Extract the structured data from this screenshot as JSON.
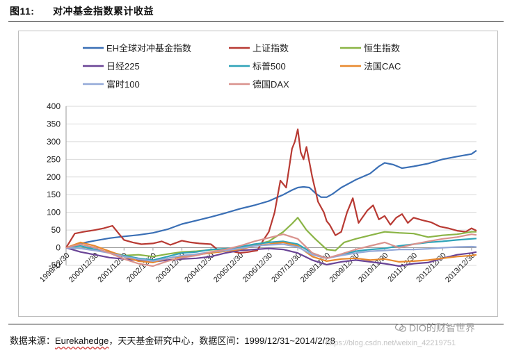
{
  "figure": {
    "number": "图11:",
    "title": "对冲基金指数累计收益"
  },
  "source_line": {
    "label": "数据来源：",
    "name": "Eurekahedge",
    "rest": "，天天基金研究中心，数据区间：1999/12/31~2014/2/28"
  },
  "watermark": {
    "brand": "DIO的财智世界",
    "url": "https://blog.csdn.net/weixin_42219751"
  },
  "colors": {
    "EH全球对冲基金指数": "#3a6fb5",
    "上证指数": "#b83a33",
    "恒生指数": "#8ab445",
    "日经225": "#6a4496",
    "标普500": "#2fa3b8",
    "法国CAC": "#e8892e",
    "富时100": "#94a9d8",
    "德国DAX": "#d9928d"
  },
  "chart_data": {
    "type": "line",
    "title": "",
    "xlabel": "",
    "ylabel": "",
    "ylim": [
      -50,
      400
    ],
    "yticks": [
      -50,
      0,
      50,
      100,
      150,
      200,
      250,
      300,
      350,
      400
    ],
    "ytick_labels": [
      "-50",
      "0",
      "50",
      "100",
      "150",
      "200",
      "250",
      "300",
      "350",
      "400"
    ],
    "grid": true,
    "legend": "top",
    "xlim": [
      0,
      14.17
    ],
    "x_categories": [
      "1999/12/30",
      "2000/12/30",
      "2001/12/30",
      "2002/12/30",
      "2003/12/30",
      "2004/12/30",
      "2005/12/30",
      "2006/12/30",
      "2007/12/30",
      "2008/12/30",
      "2009/12/30",
      "2010/12/30",
      "2011/12/30",
      "2012/12/30",
      "2013/12/30"
    ],
    "series": [
      {
        "name": "EH全球对冲基金指数",
        "x": [
          0,
          0.5,
          1,
          1.5,
          2,
          2.5,
          3,
          3.5,
          4,
          4.5,
          5,
          5.5,
          6,
          6.5,
          7,
          7.5,
          7.8,
          8,
          8.2,
          8.4,
          8.6,
          8.8,
          9,
          9.2,
          9.5,
          10,
          10.5,
          10.8,
          11,
          11.3,
          11.6,
          12,
          12.5,
          13,
          13.5,
          14,
          14.17
        ],
        "values": [
          0,
          12,
          20,
          27,
          32,
          36,
          42,
          52,
          67,
          77,
          87,
          98,
          110,
          120,
          132,
          150,
          163,
          170,
          172,
          170,
          155,
          143,
          143,
          152,
          170,
          192,
          210,
          230,
          240,
          235,
          225,
          230,
          238,
          250,
          258,
          265,
          275
        ]
      },
      {
        "name": "上证指数",
        "x": [
          0,
          0.3,
          0.6,
          1,
          1.3,
          1.6,
          2,
          2.3,
          2.6,
          3,
          3.3,
          3.6,
          4,
          4.3,
          4.6,
          5,
          5.3,
          5.6,
          6,
          6.3,
          6.6,
          6.8,
          7,
          7.2,
          7.4,
          7.6,
          7.8,
          7.9,
          8,
          8.1,
          8.2,
          8.3,
          8.5,
          8.7,
          8.9,
          9,
          9.1,
          9.3,
          9.5,
          9.7,
          9.9,
          10.1,
          10.4,
          10.6,
          10.8,
          11,
          11.2,
          11.4,
          11.6,
          11.8,
          12,
          12.3,
          12.6,
          12.9,
          13.2,
          13.5,
          13.8,
          14,
          14.17
        ],
        "values": [
          0,
          40,
          45,
          50,
          55,
          62,
          22,
          15,
          10,
          12,
          18,
          8,
          20,
          15,
          12,
          10,
          -10,
          -8,
          -15,
          -12,
          -8,
          20,
          45,
          100,
          190,
          170,
          280,
          300,
          335,
          270,
          250,
          285,
          200,
          130,
          100,
          75,
          65,
          35,
          45,
          100,
          140,
          70,
          105,
          120,
          80,
          90,
          65,
          85,
          95,
          70,
          85,
          78,
          72,
          60,
          55,
          48,
          45,
          55,
          48
        ]
      },
      {
        "name": "恒生指数",
        "x": [
          0,
          0.5,
          1,
          1.5,
          2,
          2.5,
          3,
          3.5,
          4,
          4.5,
          5,
          5.5,
          6,
          6.5,
          7,
          7.5,
          7.8,
          8,
          8.3,
          8.6,
          9,
          9.3,
          9.6,
          10,
          10.5,
          11,
          11.5,
          12,
          12.5,
          13,
          13.5,
          14,
          14.17
        ],
        "values": [
          0,
          -2,
          -6,
          -12,
          -22,
          -20,
          -25,
          -18,
          -12,
          -10,
          -6,
          -3,
          0,
          8,
          18,
          45,
          68,
          85,
          50,
          25,
          -5,
          -8,
          15,
          25,
          35,
          45,
          42,
          40,
          30,
          35,
          38,
          45,
          45
        ]
      },
      {
        "name": "日经225",
        "x": [
          0,
          0.5,
          1,
          1.5,
          2,
          2.5,
          3,
          3.5,
          4,
          4.5,
          5,
          5.5,
          6,
          6.5,
          7,
          7.5,
          8,
          8.5,
          9,
          9.5,
          10,
          10.5,
          11,
          11.5,
          12,
          12.5,
          13,
          13.5,
          14,
          14.17
        ],
        "values": [
          0,
          -12,
          -20,
          -28,
          -32,
          -36,
          -40,
          -35,
          -32,
          -30,
          -25,
          -15,
          -8,
          -5,
          -2,
          -5,
          -15,
          -35,
          -48,
          -40,
          -35,
          -40,
          -45,
          -52,
          -45,
          -42,
          -30,
          -20,
          -15,
          -12
        ]
      },
      {
        "name": "标普500",
        "x": [
          0,
          0.5,
          1,
          1.5,
          2,
          2.5,
          3,
          3.5,
          4,
          4.5,
          5,
          5.5,
          6,
          6.5,
          7,
          7.5,
          8,
          8.5,
          9,
          9.5,
          10,
          10.5,
          11,
          11.5,
          12,
          12.5,
          13,
          13.5,
          14,
          14.17
        ],
        "values": [
          0,
          5,
          -5,
          -15,
          -22,
          -30,
          -35,
          -25,
          -15,
          -12,
          -5,
          -3,
          2,
          10,
          15,
          18,
          10,
          -15,
          -30,
          -20,
          -10,
          -5,
          -2,
          5,
          10,
          15,
          18,
          22,
          25,
          26
        ]
      },
      {
        "name": "法国CAC",
        "x": [
          0,
          0.5,
          1,
          1.5,
          2,
          2.5,
          3,
          3.5,
          4,
          4.5,
          5,
          5.5,
          6,
          6.5,
          7,
          7.5,
          8,
          8.5,
          9,
          9.5,
          10,
          10.5,
          11,
          11.5,
          12,
          12.5,
          13,
          13.5,
          14,
          14.17
        ],
        "values": [
          0,
          15,
          5,
          -10,
          -25,
          -38,
          -42,
          -30,
          -25,
          -20,
          -15,
          -10,
          -5,
          5,
          10,
          15,
          5,
          -25,
          -38,
          -32,
          -30,
          -35,
          -32,
          -40,
          -38,
          -35,
          -30,
          -25,
          -22,
          -20
        ]
      },
      {
        "name": "富时100",
        "x": [
          0,
          0.5,
          1,
          1.5,
          2,
          2.5,
          3,
          3.5,
          4,
          4.5,
          5,
          5.5,
          6,
          6.5,
          7,
          7.5,
          8,
          8.5,
          9,
          9.5,
          10,
          10.5,
          11,
          11.5,
          12,
          12.5,
          13,
          13.5,
          14,
          14.17
        ],
        "values": [
          0,
          -2,
          -8,
          -15,
          -25,
          -32,
          -38,
          -30,
          -22,
          -18,
          -12,
          -8,
          -2,
          5,
          8,
          10,
          2,
          -20,
          -30,
          -22,
          -15,
          -10,
          -8,
          -5,
          -5,
          -3,
          0,
          2,
          3,
          2
        ]
      },
      {
        "name": "德国DAX",
        "x": [
          0,
          0.5,
          1,
          1.5,
          2,
          2.5,
          3,
          3.5,
          4,
          4.5,
          5,
          5.5,
          6,
          6.5,
          7,
          7.5,
          8,
          8.5,
          9,
          9.5,
          10,
          10.5,
          11,
          11.5,
          12,
          12.5,
          13,
          13.5,
          14,
          14.17
        ],
        "values": [
          0,
          10,
          0,
          -15,
          -32,
          -45,
          -52,
          -38,
          -28,
          -22,
          -12,
          -5,
          5,
          18,
          28,
          38,
          25,
          -15,
          -30,
          -18,
          -5,
          5,
          15,
          0,
          10,
          18,
          25,
          30,
          38,
          36
        ]
      }
    ]
  }
}
